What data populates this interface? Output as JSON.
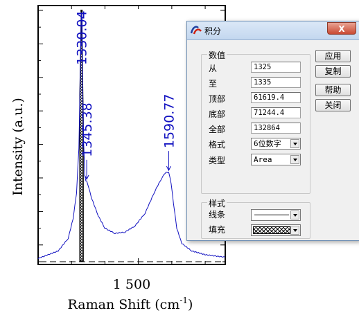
{
  "chart_data": {
    "type": "line",
    "xlabel": "Raman Shift (cm",
    "xlabel_sup": "-1",
    "xlabel_close": ")",
    "ylabel": "Intensity (a.u.)",
    "x_tick_label": "1 500",
    "x_tick_value": 1500,
    "xlim": [
      1200,
      1760
    ],
    "ylim": [
      0,
      1
    ],
    "peaks": [
      {
        "label": "1330.04",
        "x": 1330.04
      },
      {
        "label": "1345.38",
        "x": 1345.38
      },
      {
        "label": "1590.77",
        "x": 1590.77
      }
    ],
    "series": [
      {
        "color": "#1010c0",
        "x": [
          1200,
          1260,
          1290,
          1305,
          1315,
          1322,
          1327,
          1329,
          1330.04,
          1331,
          1333,
          1336,
          1340,
          1343,
          1345.38,
          1350,
          1360,
          1380,
          1400,
          1430,
          1460,
          1490,
          1520,
          1550,
          1570,
          1580,
          1590.77,
          1598,
          1605,
          1615,
          1630,
          1660,
          1700,
          1760
        ],
        "y": [
          0.01,
          0.04,
          0.09,
          0.17,
          0.27,
          0.45,
          0.8,
          0.97,
          1.0,
          0.96,
          0.72,
          0.48,
          0.34,
          0.32,
          0.32,
          0.3,
          0.25,
          0.18,
          0.13,
          0.11,
          0.115,
          0.14,
          0.19,
          0.28,
          0.33,
          0.35,
          0.355,
          0.31,
          0.23,
          0.13,
          0.07,
          0.04,
          0.025,
          0.015
        ]
      }
    ],
    "integration_range": [
      1325,
      1335
    ]
  },
  "dialog": {
    "title": "积分",
    "close_label": "X",
    "values_group": {
      "title": "数值",
      "rows": [
        {
          "label": "从",
          "value": "1325"
        },
        {
          "label": "至",
          "value": "1335"
        },
        {
          "label": "顶部",
          "value": "61619.4"
        },
        {
          "label": "底部",
          "value": "71244.4"
        },
        {
          "label": "全部",
          "value": "132864"
        }
      ],
      "format_label": "格式",
      "format_value": "6位数字",
      "type_label": "类型",
      "type_value": "Area"
    },
    "style_group": {
      "title": "样式",
      "line_label": "线条",
      "fill_label": "填充"
    },
    "buttons": {
      "apply": "应用",
      "copy": "复制",
      "help": "帮助",
      "close": "关闭"
    }
  }
}
